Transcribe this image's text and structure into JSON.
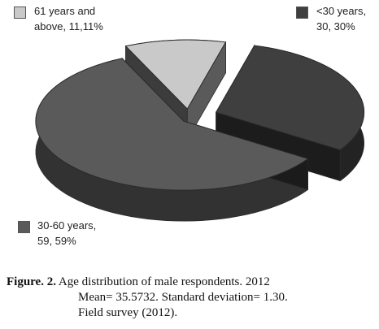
{
  "chart_data": {
    "type": "pie",
    "style": "3d-exploded",
    "legend_placement": "around-pie",
    "slices": [
      {
        "label_line1": "<30 years,",
        "label_line2": "30, 30%",
        "value": 30,
        "percent": "30%",
        "color": "#3f3f3f"
      },
      {
        "label_line1": "30-60 years,",
        "label_line2": "59, 59%",
        "value": 59,
        "percent": "59%",
        "color": "#5a5a5a"
      },
      {
        "label_line1": "61 years and",
        "label_line2": "above, 11,11%",
        "value": 11,
        "percent": "11%",
        "color": "#c9c9c9"
      }
    ]
  },
  "caption": {
    "label": "Figure. 2.",
    "line1": "Age distribution of male respondents. 2012",
    "line2": "Mean= 35.5732. Standard deviation= 1.30.",
    "line3": "Field survey (2012)."
  }
}
